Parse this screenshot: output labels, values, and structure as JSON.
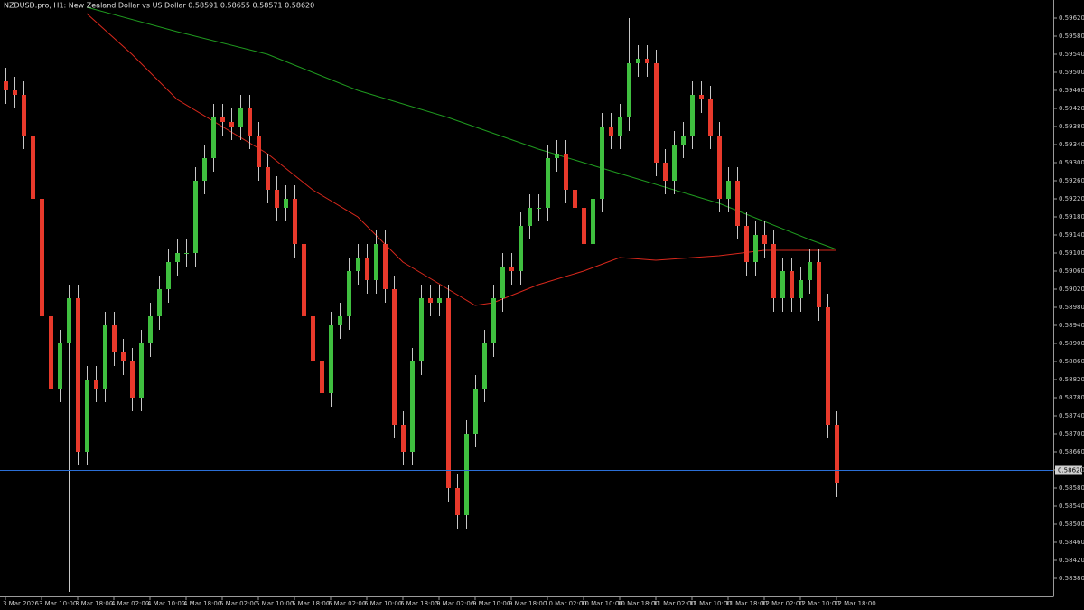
{
  "chart_data": {
    "type": "candlestick",
    "title": "NZDUSD.pro, H1: New Zealand Dollar vs US Dollar 0.58591 0.58655 0.58571 0.58620",
    "up_color": "#3fbf3f",
    "down_color": "#e8392b",
    "wick_color": "#c8c8c8",
    "categories": [
      "3 Mar 2026",
      null,
      null,
      null,
      "3 Mar 10:00",
      null,
      null,
      null,
      "3 Mar 18:00",
      null,
      null,
      null,
      "4 Mar 02:00",
      null,
      null,
      null,
      "4 Mar 10:00",
      null,
      null,
      null,
      "4 Mar 18:00",
      null,
      null,
      null,
      "5 Mar 02:00",
      null,
      null,
      null,
      "5 Mar 10:00",
      null,
      null,
      null,
      "5 Mar 18:00",
      null,
      null,
      null,
      "6 Mar 02:00",
      null,
      null,
      null,
      "6 Mar 10:00",
      null,
      null,
      null,
      "6 Mar 18:00",
      null,
      null,
      null,
      "9 Mar 02:00",
      null,
      null,
      null,
      "9 Mar 10:00",
      null,
      null,
      null,
      "9 Mar 18:00",
      null,
      null,
      null,
      "10 Mar 02:00",
      null,
      null,
      null,
      "10 Mar 10:00",
      null,
      null,
      null,
      "10 Mar 18:00",
      null,
      null,
      null,
      "11 Mar 02:00",
      null,
      null,
      null,
      "11 Mar 10:00",
      null,
      null,
      null,
      "11 Mar 18:00",
      null,
      null,
      null,
      "12 Mar 02:00",
      null,
      null,
      null,
      "12 Mar 10:00",
      null,
      null,
      null,
      "12 Mar 18:00"
    ],
    "open": [
      0.5948,
      0.5946,
      0.5945,
      0.5936,
      0.5922,
      0.5896,
      0.588,
      0.589,
      0.59,
      0.5866,
      0.5882,
      0.588,
      0.5894,
      0.5888,
      0.5886,
      0.5878,
      0.589,
      0.5896,
      0.5902,
      0.5908,
      0.591,
      0.591,
      0.5926,
      0.5931,
      0.594,
      0.5939,
      0.5938,
      0.5942,
      0.5936,
      0.5929,
      0.5924,
      0.592,
      0.5922,
      0.5912,
      0.5896,
      0.5886,
      0.5879,
      0.5894,
      0.5896,
      0.5906,
      0.5909,
      0.5904,
      0.5912,
      0.5902,
      0.5872,
      0.5866,
      0.5886,
      0.59,
      0.5899,
      0.59,
      0.5858,
      0.5852,
      0.587,
      0.588,
      0.589,
      0.59,
      0.5907,
      0.5906,
      0.5916,
      0.592,
      0.592,
      0.5931,
      0.5932,
      0.5924,
      0.592,
      0.5912,
      0.5922,
      0.5938,
      0.5936,
      0.594,
      0.5952,
      0.5953,
      0.5952,
      0.593,
      0.5926,
      0.5934,
      0.5936,
      0.5945,
      0.5944,
      0.5936,
      0.5922,
      0.5926,
      0.5916,
      0.5908,
      0.5914,
      0.5912,
      0.59,
      0.5906,
      0.59,
      0.5904,
      0.5908,
      0.5898,
      0.5872
    ],
    "high": [
      0.5951,
      0.5949,
      0.5948,
      0.5939,
      0.5925,
      0.5899,
      0.5893,
      0.5903,
      0.5903,
      0.5885,
      0.5885,
      0.5897,
      0.5897,
      0.5891,
      0.5889,
      0.5893,
      0.5899,
      0.5905,
      0.5911,
      0.5913,
      0.5913,
      0.5929,
      0.5934,
      0.5943,
      0.5943,
      0.5942,
      0.5945,
      0.5945,
      0.5939,
      0.5932,
      0.5927,
      0.5925,
      0.5925,
      0.5915,
      0.5899,
      0.5889,
      0.5897,
      0.5899,
      0.5909,
      0.5912,
      0.5912,
      0.5915,
      0.5915,
      0.5905,
      0.5875,
      0.5889,
      0.5903,
      0.5903,
      0.5903,
      0.5903,
      0.5861,
      0.5873,
      0.5883,
      0.5893,
      0.5903,
      0.591,
      0.591,
      0.5919,
      0.5923,
      0.5923,
      0.5934,
      0.5935,
      0.5935,
      0.5927,
      0.5923,
      0.5925,
      0.5941,
      0.5941,
      0.5943,
      0.5962,
      0.5956,
      0.5956,
      0.5955,
      0.5933,
      0.5937,
      0.5939,
      0.5948,
      0.5948,
      0.5947,
      0.5939,
      0.5929,
      0.5929,
      0.5919,
      0.5917,
      0.5917,
      0.5915,
      0.5909,
      0.5909,
      0.5907,
      0.5911,
      0.5911,
      0.5901,
      0.5875
    ],
    "low": [
      0.5943,
      0.5942,
      0.5933,
      0.5919,
      0.5893,
      0.5877,
      0.5877,
      0.5835,
      0.5863,
      0.5863,
      0.5877,
      0.5877,
      0.5885,
      0.5883,
      0.5875,
      0.5875,
      0.5887,
      0.5893,
      0.5899,
      0.5905,
      0.5907,
      0.5907,
      0.5923,
      0.5928,
      0.5936,
      0.5935,
      0.5935,
      0.5933,
      0.5926,
      0.5921,
      0.5917,
      0.5917,
      0.5909,
      0.5893,
      0.5883,
      0.5876,
      0.5876,
      0.5891,
      0.5893,
      0.5903,
      0.5901,
      0.5901,
      0.5899,
      0.5869,
      0.5863,
      0.5863,
      0.5883,
      0.5896,
      0.5896,
      0.5855,
      0.5849,
      0.5849,
      0.5867,
      0.5877,
      0.5887,
      0.5897,
      0.5903,
      0.5903,
      0.5913,
      0.5917,
      0.5917,
      0.5928,
      0.5921,
      0.5917,
      0.5909,
      0.5909,
      0.5919,
      0.5933,
      0.5933,
      0.5937,
      0.5949,
      0.5949,
      0.5927,
      0.5923,
      0.5923,
      0.5931,
      0.5933,
      0.5941,
      0.5933,
      0.5919,
      0.5919,
      0.5913,
      0.5905,
      0.5905,
      0.5909,
      0.5897,
      0.5897,
      0.5897,
      0.5897,
      0.5901,
      0.5895,
      0.5869,
      0.5856
    ],
    "close": [
      0.5946,
      0.5945,
      0.5936,
      0.5922,
      0.5896,
      0.588,
      0.589,
      0.59,
      0.5866,
      0.5882,
      0.588,
      0.5894,
      0.5888,
      0.5886,
      0.5878,
      0.589,
      0.5896,
      0.5902,
      0.5908,
      0.591,
      0.591,
      0.5926,
      0.5931,
      0.594,
      0.5939,
      0.5938,
      0.5942,
      0.5936,
      0.5929,
      0.5924,
      0.592,
      0.5922,
      0.5912,
      0.5896,
      0.5886,
      0.5879,
      0.5894,
      0.5896,
      0.5906,
      0.5909,
      0.5904,
      0.5912,
      0.5902,
      0.5872,
      0.5866,
      0.5886,
      0.59,
      0.5899,
      0.59,
      0.5858,
      0.5852,
      0.587,
      0.588,
      0.589,
      0.59,
      0.5907,
      0.5906,
      0.5916,
      0.592,
      0.592,
      0.5931,
      0.5932,
      0.5924,
      0.592,
      0.5912,
      0.5922,
      0.5938,
      0.5936,
      0.594,
      0.5952,
      0.5953,
      0.5952,
      0.593,
      0.5926,
      0.5934,
      0.5936,
      0.5945,
      0.5944,
      0.5936,
      0.5922,
      0.5926,
      0.5916,
      0.5908,
      0.5914,
      0.5912,
      0.59,
      0.5906,
      0.59,
      0.5904,
      0.5908,
      0.5898,
      0.5872,
      0.5859
    ],
    "series": [
      {
        "color": "#1f9a1f",
        "x": [
          9,
          19,
          29,
          39,
          49,
          59,
          69,
          79,
          89,
          92
        ],
        "values": [
          0.59644,
          0.5959,
          0.5954,
          0.5946,
          0.594,
          0.5933,
          0.5927,
          0.5921,
          0.5913,
          0.59108
        ]
      },
      {
        "color": "#d8281c",
        "x": [
          9,
          14,
          19,
          24,
          29,
          34,
          39,
          44,
          49,
          52,
          54,
          59,
          64,
          68,
          72,
          79,
          84,
          92
        ],
        "values": [
          0.5963,
          0.5954,
          0.5944,
          0.5938,
          0.5932,
          0.5924,
          0.5918,
          0.5908,
          0.5902,
          0.58984,
          0.5899,
          0.5903,
          0.5906,
          0.5909,
          0.59084,
          0.59094,
          0.59106,
          0.59106
        ]
      }
    ],
    "bid": {
      "value": 0.5862,
      "label": "0.58620",
      "color": "#2b6fd6"
    },
    "ylim": [
      0.5834,
      0.5966
    ],
    "yticks": [
      {
        "value": 0.5962,
        "label": "0.59620"
      },
      {
        "value": 0.5958,
        "label": "0.59580"
      },
      {
        "value": 0.5954,
        "label": "0.59540"
      },
      {
        "value": 0.595,
        "label": "0.59500"
      },
      {
        "value": 0.5946,
        "label": "0.59460"
      },
      {
        "value": 0.5942,
        "label": "0.59420"
      },
      {
        "value": 0.5938,
        "label": "0.59380"
      },
      {
        "value": 0.5934,
        "label": "0.59340"
      },
      {
        "value": 0.593,
        "label": "0.59300"
      },
      {
        "value": 0.5926,
        "label": "0.59260"
      },
      {
        "value": 0.5922,
        "label": "0.59220"
      },
      {
        "value": 0.5918,
        "label": "0.59180"
      },
      {
        "value": 0.5914,
        "label": "0.59140"
      },
      {
        "value": 0.591,
        "label": "0.59100"
      },
      {
        "value": 0.5906,
        "label": "0.59060"
      },
      {
        "value": 0.5902,
        "label": "0.59020"
      },
      {
        "value": 0.5898,
        "label": "0.58980"
      },
      {
        "value": 0.5894,
        "label": "0.58940"
      },
      {
        "value": 0.589,
        "label": "0.58900"
      },
      {
        "value": 0.5886,
        "label": "0.58860"
      },
      {
        "value": 0.5882,
        "label": "0.58820"
      },
      {
        "value": 0.5878,
        "label": "0.58780"
      },
      {
        "value": 0.5874,
        "label": "0.58740"
      },
      {
        "value": 0.587,
        "label": "0.58700"
      },
      {
        "value": 0.5866,
        "label": "0.58660"
      },
      {
        "value": 0.5862,
        "label": "0.58620"
      },
      {
        "value": 0.5858,
        "label": "0.58580"
      },
      {
        "value": 0.5854,
        "label": "0.58540"
      },
      {
        "value": 0.585,
        "label": "0.58500"
      },
      {
        "value": 0.5846,
        "label": "0.58460"
      },
      {
        "value": 0.5842,
        "label": "0.58420"
      },
      {
        "value": 0.5838,
        "label": "0.58380"
      }
    ],
    "grid": false
  }
}
